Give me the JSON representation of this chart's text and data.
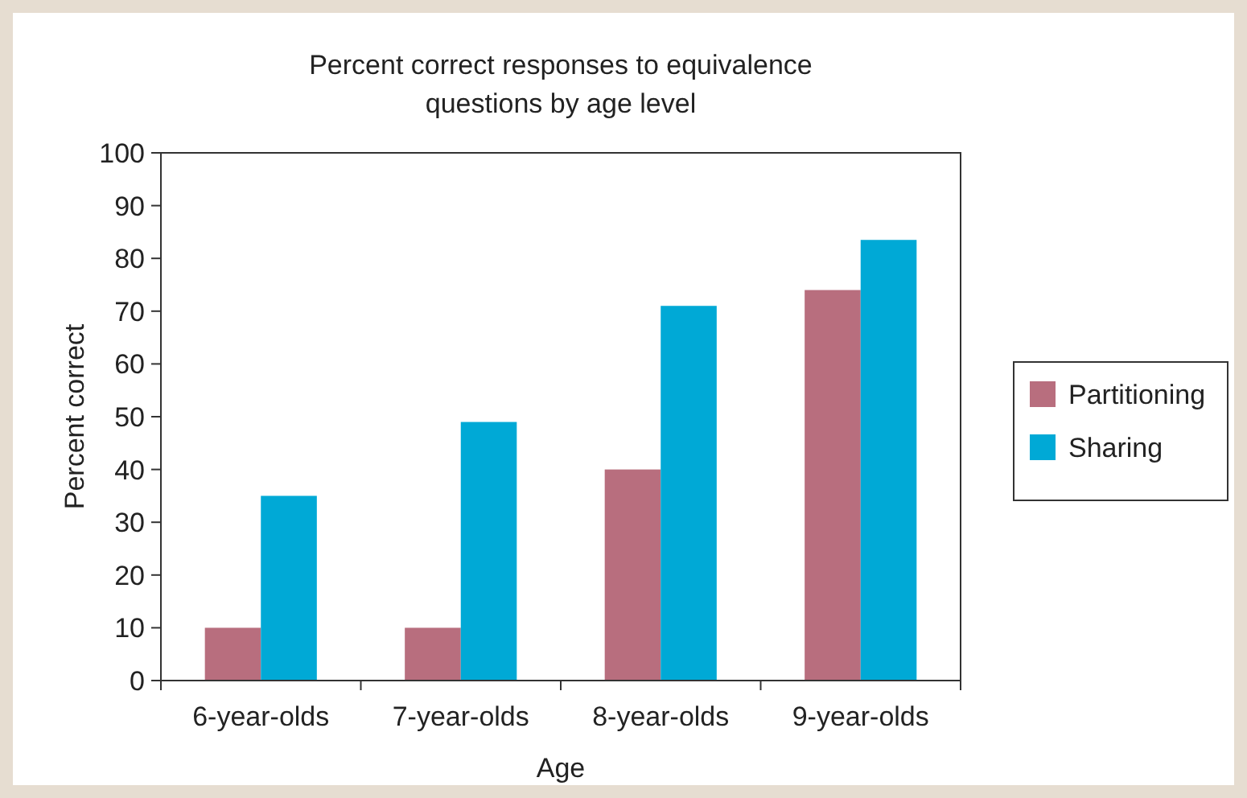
{
  "chart_data": {
    "type": "bar",
    "title": "Percent correct responses to equivalence questions by age level",
    "xlabel": "Age",
    "ylabel": "Percent correct",
    "categories": [
      "6-year-olds",
      "7-year-olds",
      "8-year-olds",
      "9-year-olds"
    ],
    "series": [
      {
        "name": "Partitioning",
        "color": "#b86e7e",
        "values": [
          10,
          10,
          40,
          74
        ]
      },
      {
        "name": "Sharing",
        "color": "#00a9d6",
        "values": [
          35,
          49,
          71,
          83.5
        ]
      }
    ],
    "ylim": [
      0,
      100
    ],
    "yticks": [
      0,
      10,
      20,
      30,
      40,
      50,
      60,
      70,
      80,
      90,
      100
    ],
    "grid": false,
    "legend": "right"
  }
}
